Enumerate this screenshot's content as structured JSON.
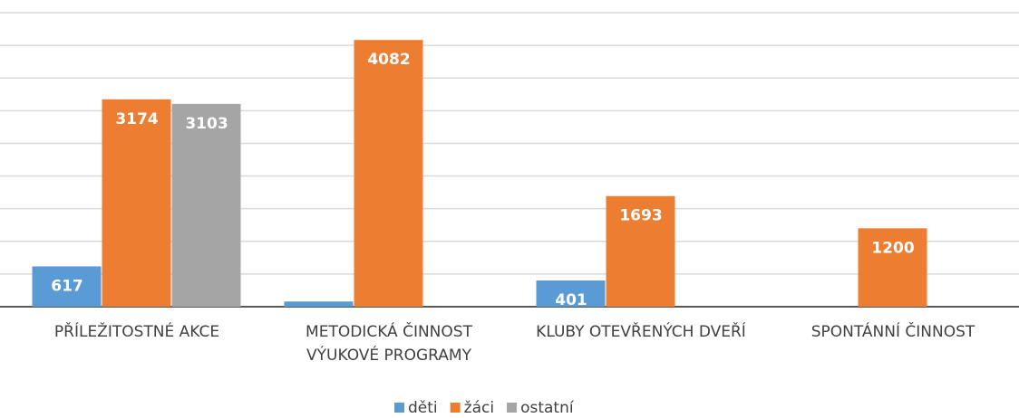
{
  "chart_data": {
    "type": "bar",
    "categories": [
      "PŘÍLEŽITOSTNÉ AKCE",
      "METODICKÁ ČINNOST\nVÝUKOVÉ PROGRAMY",
      "KLUBY OTEVŘENÝCH DVEŘÍ",
      "SPONTÁNNÍ ČINNOST"
    ],
    "series": [
      {
        "name": "děti",
        "color": "#5b9bd5",
        "values": [
          617,
          80,
          401,
          null
        ],
        "value_labels": [
          "617",
          null,
          "401",
          null
        ]
      },
      {
        "name": "žáci",
        "color": "#ed7d31",
        "values": [
          3174,
          4082,
          1693,
          1200
        ],
        "value_labels": [
          "3174",
          "4082",
          "1693",
          "1200"
        ]
      },
      {
        "name": "ostatní",
        "color": "#a5a5a5",
        "values": [
          3103,
          null,
          null,
          null
        ],
        "value_labels": [
          "3103",
          null,
          null,
          null
        ]
      }
    ],
    "ylim": [
      0,
      4500
    ],
    "yticks": [
      0,
      500,
      1000,
      1500,
      2000,
      2500,
      3000,
      3500,
      4000,
      4500
    ],
    "grid": true,
    "legend": "bottom"
  }
}
